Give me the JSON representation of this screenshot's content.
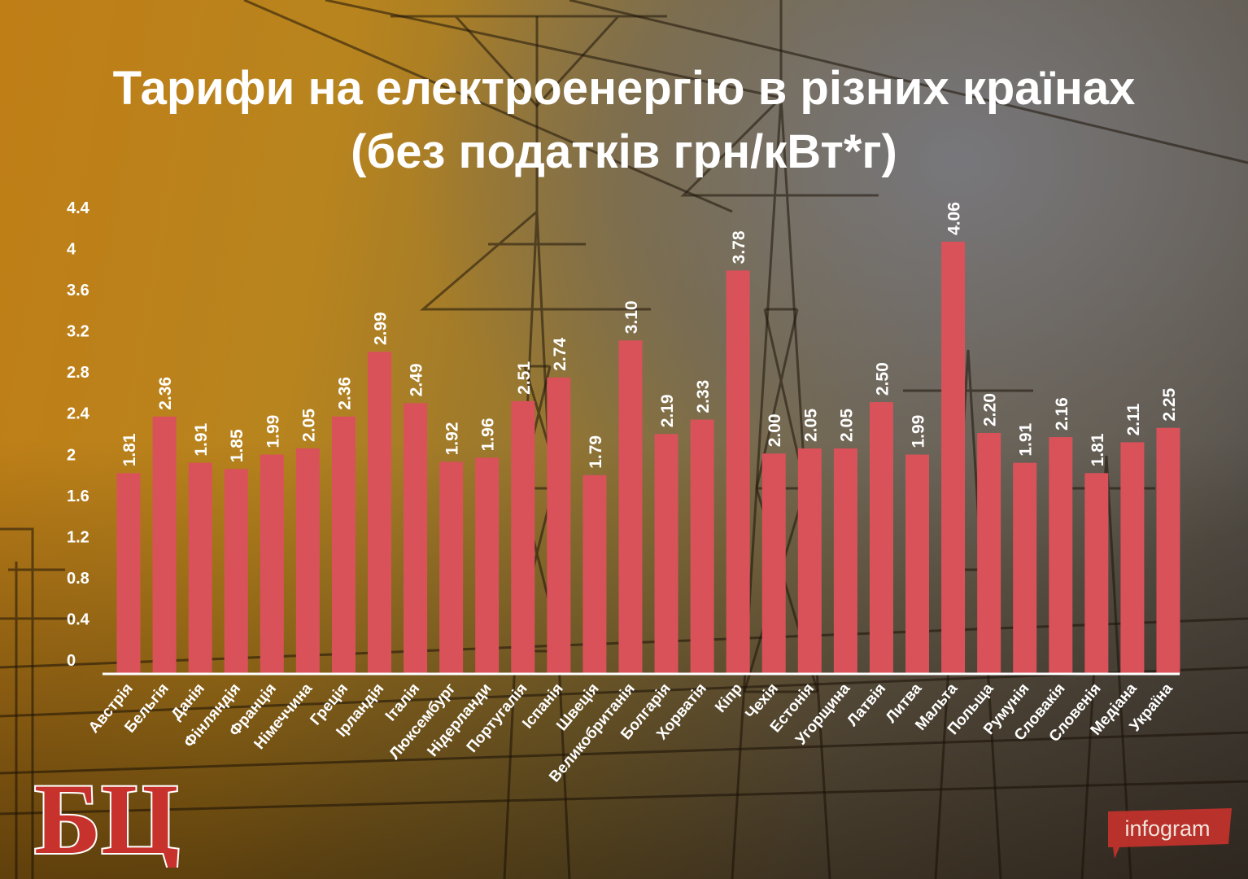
{
  "title_line1": "Тарифи на електроенергію в різних країнах",
  "title_line2": "(без податків грн/кВт*г)",
  "chart_data": {
    "type": "bar",
    "title": "Тарифи на електроенергію в різних країнах (без податків грн/кВт*г)",
    "categories": [
      "Австрія",
      "Бельгія",
      "Данія",
      "Фінляндія",
      "Франція",
      "Німеччина",
      "Греція",
      "Ірландія",
      "Італія",
      "Люксембург",
      "Нідерланди",
      "Португалія",
      "Іспанія",
      "Швеція",
      "Великобританія",
      "Болгарія",
      "Хорватія",
      "Кіпр",
      "Чехія",
      "Естонія",
      "Угорщина",
      "Латвія",
      "Литва",
      "Мальта",
      "Польща",
      "Румунія",
      "Словакія",
      "Словенія",
      "Медіана",
      "Україна"
    ],
    "values": [
      1.81,
      2.36,
      1.91,
      1.85,
      1.99,
      2.05,
      2.36,
      2.99,
      2.49,
      1.92,
      1.96,
      2.51,
      2.74,
      1.79,
      3.1,
      2.19,
      2.33,
      3.78,
      2.0,
      2.05,
      2.05,
      2.5,
      1.99,
      4.06,
      2.2,
      1.91,
      2.16,
      1.81,
      2.11,
      2.25
    ],
    "value_labels": [
      "1.81",
      "2.36",
      "1.91",
      "1.85",
      "1.99",
      "2.05",
      "2.36",
      "2.99",
      "2.49",
      "1.92",
      "1.96",
      "2.51",
      "2.74",
      "1.79",
      "3.10",
      "2.19",
      "2.33",
      "3.78",
      "2.00",
      "2.05",
      "2.05",
      "2.50",
      "1.99",
      "4.06",
      "2.20",
      "1.91",
      "2.16",
      "1.81",
      "2.11",
      "2.25"
    ],
    "y_ticks": [
      "0",
      "0.4",
      "0.8",
      "1.2",
      "1.6",
      "2",
      "2.4",
      "2.8",
      "3.2",
      "3.6",
      "4",
      "4.4"
    ],
    "ylim": [
      0,
      4.4
    ],
    "xlabel": "",
    "ylabel": "",
    "grid": false,
    "bar_color": "#d9525a",
    "axis_color": "#ffffff",
    "text_color": "#ffffff"
  },
  "logo_text": "БЦ",
  "watermark_text": "infogram",
  "colors": {
    "title": "#ffffff",
    "logo_red": "#c8322c",
    "infogram_red": "#c8322c"
  }
}
